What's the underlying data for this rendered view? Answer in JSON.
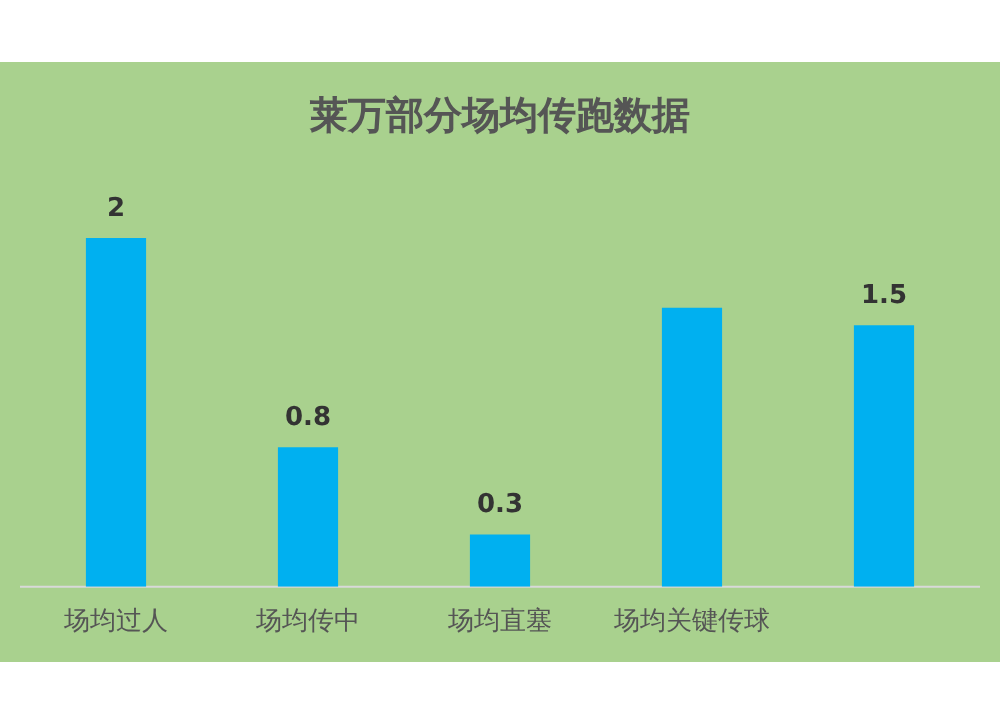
{
  "chart_data": {
    "type": "bar",
    "title": "莱万部分场均传跑数据",
    "categories": [
      "场均过人",
      "场均传中",
      "场均直塞",
      "场均关键传球",
      null
    ],
    "values": [
      2,
      0.8,
      0.3,
      1.6,
      1.5
    ],
    "value_labels": [
      "2",
      "0.8",
      "0.3",
      null,
      "1.5"
    ],
    "color": "#00b0f0",
    "grid": false,
    "legend": false
  }
}
